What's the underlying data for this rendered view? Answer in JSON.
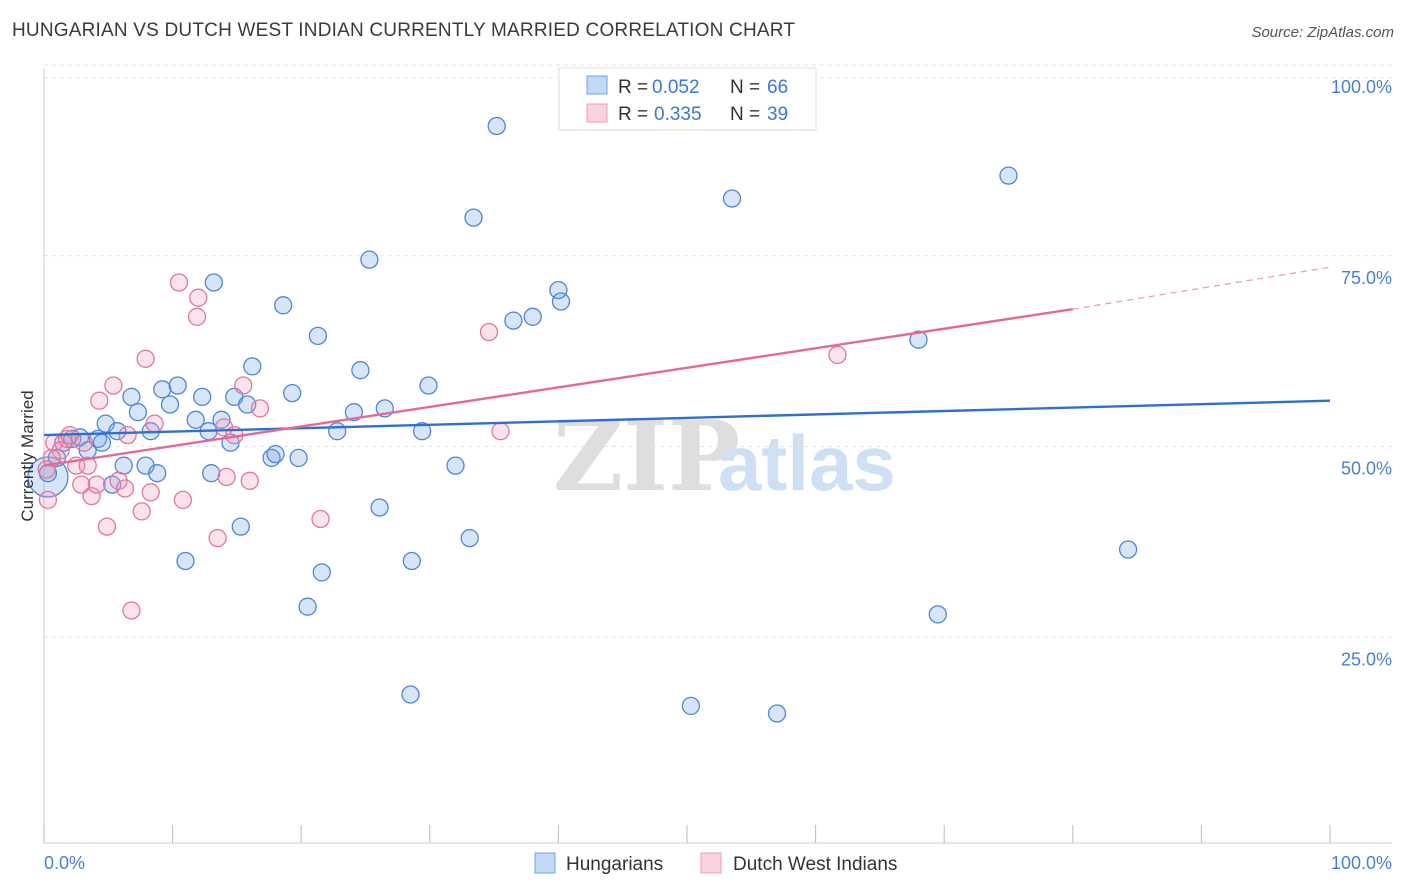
{
  "title": "HUNGARIAN VS DUTCH WEST INDIAN CURRENTLY MARRIED CORRELATION CHART",
  "source": "Source: ZipAtlas.com",
  "watermark": {
    "zip": "ZIP",
    "atlas": "atlas"
  },
  "legend_top": [
    {
      "r_label": "R =",
      "r_value": "0.052",
      "n_label": "N =",
      "n_value": "66",
      "color": "#6fa3e8"
    },
    {
      "r_label": "R =",
      "r_value": "0.335",
      "n_label": "N =",
      "n_value": "39",
      "color": "#f29bb7"
    }
  ],
  "chart_data": {
    "type": "scatter",
    "title": "HUNGARIAN VS DUTCH WEST INDIAN CURRENTLY MARRIED CORRELATION CHART",
    "xlabel": "",
    "ylabel": "Currently Married",
    "xlim": [
      0,
      100
    ],
    "ylim": [
      0,
      100
    ],
    "x_tick_labels": [
      "0.0%",
      "100.0%"
    ],
    "y_ticks": [
      25,
      50,
      75,
      100
    ],
    "y_tick_labels": [
      "25.0%",
      "50.0%",
      "75.0%",
      "100.0%"
    ],
    "grid": true,
    "legend": "bottom-center",
    "series": [
      {
        "name": "Hungarians",
        "color": "#6fa3e8",
        "stroke": "#4f86d6",
        "trend": {
          "x0": 0,
          "y0": 51.5,
          "x1": 100,
          "y1": 56.0,
          "color": "#2f6fcf"
        },
        "points": [
          [
            0.3,
            46.0
          ],
          [
            1.0,
            48.5
          ],
          [
            1.5,
            50.5
          ],
          [
            2.2,
            51.0
          ],
          [
            2.8,
            51.2
          ],
          [
            3.4,
            49.5
          ],
          [
            4.2,
            51.0
          ],
          [
            4.5,
            50.5
          ],
          [
            4.8,
            53.0
          ],
          [
            5.3,
            45.0
          ],
          [
            5.7,
            52.0
          ],
          [
            6.2,
            47.5
          ],
          [
            6.8,
            56.5
          ],
          [
            7.3,
            54.5
          ],
          [
            7.9,
            47.5
          ],
          [
            8.3,
            52.0
          ],
          [
            8.8,
            46.5
          ],
          [
            9.2,
            57.5
          ],
          [
            9.8,
            55.5
          ],
          [
            10.4,
            58.0
          ],
          [
            11.0,
            35.0
          ],
          [
            11.8,
            53.5
          ],
          [
            12.3,
            56.5
          ],
          [
            12.8,
            52.0
          ],
          [
            13.0,
            46.5
          ],
          [
            13.2,
            71.5
          ],
          [
            13.8,
            53.5
          ],
          [
            14.5,
            50.5
          ],
          [
            14.8,
            56.5
          ],
          [
            15.3,
            39.5
          ],
          [
            15.8,
            55.5
          ],
          [
            16.2,
            60.5
          ],
          [
            17.7,
            48.5
          ],
          [
            18.0,
            49.0
          ],
          [
            18.6,
            68.5
          ],
          [
            19.3,
            57.0
          ],
          [
            19.8,
            48.5
          ],
          [
            20.5,
            29.0
          ],
          [
            21.3,
            64.5
          ],
          [
            21.6,
            33.5
          ],
          [
            22.8,
            52.0
          ],
          [
            24.1,
            54.5
          ],
          [
            24.6,
            60.0
          ],
          [
            25.3,
            74.5
          ],
          [
            26.1,
            42.0
          ],
          [
            26.5,
            55.0
          ],
          [
            28.5,
            17.5
          ],
          [
            28.6,
            35.0
          ],
          [
            29.4,
            52.0
          ],
          [
            29.9,
            58.0
          ],
          [
            32.0,
            47.5
          ],
          [
            33.1,
            38.0
          ],
          [
            33.4,
            80.0
          ],
          [
            35.2,
            92.0
          ],
          [
            36.5,
            66.5
          ],
          [
            38.0,
            67.0
          ],
          [
            40.0,
            70.5
          ],
          [
            40.2,
            69.0
          ],
          [
            50.3,
            16.0
          ],
          [
            53.5,
            82.5
          ],
          [
            57.0,
            15.0
          ],
          [
            68.0,
            64.0
          ],
          [
            69.5,
            28.0
          ],
          [
            75.0,
            85.5
          ],
          [
            84.3,
            36.5
          ],
          [
            0.3,
            46.5
          ]
        ]
      },
      {
        "name": "Dutch West Indians",
        "color": "#f29bb7",
        "stroke": "#e2779c",
        "trend": {
          "x0": 0,
          "y0": 47.5,
          "x1": 80,
          "y1": 68.0,
          "dash_to": 100,
          "dash_y": 73.5,
          "color": "#e36a98"
        },
        "points": [
          [
            0.3,
            43.0
          ],
          [
            0.8,
            50.5
          ],
          [
            1.3,
            49.5
          ],
          [
            1.8,
            51.0
          ],
          [
            2.5,
            47.5
          ],
          [
            2.9,
            45.0
          ],
          [
            3.4,
            47.5
          ],
          [
            3.7,
            43.5
          ],
          [
            4.1,
            45.0
          ],
          [
            4.3,
            56.0
          ],
          [
            4.9,
            39.5
          ],
          [
            5.4,
            58.0
          ],
          [
            5.8,
            45.5
          ],
          [
            6.3,
            44.5
          ],
          [
            6.5,
            51.5
          ],
          [
            6.8,
            28.5
          ],
          [
            7.6,
            41.5
          ],
          [
            7.9,
            61.5
          ],
          [
            8.3,
            44.0
          ],
          [
            8.6,
            53.0
          ],
          [
            10.5,
            71.5
          ],
          [
            10.8,
            43.0
          ],
          [
            11.9,
            67.0
          ],
          [
            12.0,
            69.5
          ],
          [
            13.5,
            38.0
          ],
          [
            14.0,
            52.5
          ],
          [
            14.2,
            46.0
          ],
          [
            14.8,
            51.5
          ],
          [
            15.5,
            58.0
          ],
          [
            16.0,
            45.5
          ],
          [
            16.8,
            55.0
          ],
          [
            21.5,
            40.5
          ],
          [
            34.6,
            65.0
          ],
          [
            35.5,
            52.0
          ],
          [
            61.7,
            62.0
          ],
          [
            0.6,
            48.5
          ],
          [
            2.0,
            51.5
          ],
          [
            3.1,
            50.5
          ],
          [
            0.2,
            47.0
          ]
        ]
      }
    ]
  },
  "legend_bottom": [
    {
      "label": "Hungarians",
      "color": "#6fa3e8"
    },
    {
      "label": "Dutch West Indians",
      "color": "#f29bb7"
    }
  ]
}
